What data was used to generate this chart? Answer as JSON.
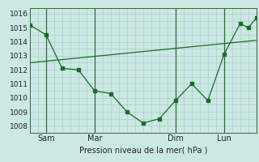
{
  "title": "",
  "xlabel": "Pression niveau de la mer( hPa )",
  "ylabel": "",
  "bg_color": "#cce8e4",
  "grid_color": "#aacfcb",
  "line_color": "#1a6b2a",
  "ylim": [
    1007.5,
    1016.4
  ],
  "xlim": [
    0,
    28
  ],
  "xtick_positions": [
    2,
    8,
    18,
    24
  ],
  "xtick_labels": [
    "Sam",
    "Mar",
    "Dim",
    "Lun"
  ],
  "ytick_positions": [
    1008,
    1009,
    1010,
    1011,
    1012,
    1013,
    1014,
    1015,
    1016
  ],
  "vline_positions": [
    2,
    8,
    18,
    24
  ],
  "series1_x": [
    0,
    2,
    4,
    6,
    8,
    10,
    12,
    14,
    16,
    18,
    20,
    22,
    24,
    26,
    27,
    28
  ],
  "series1_y": [
    1015.2,
    1014.5,
    1012.1,
    1012.0,
    1010.5,
    1010.3,
    1009.0,
    1008.2,
    1008.5,
    1009.8,
    1011.0,
    1009.8,
    1013.1,
    1015.3,
    1015.0,
    1015.7
  ],
  "series2_x": [
    0,
    28
  ],
  "series2_y": [
    1012.5,
    1014.1
  ]
}
